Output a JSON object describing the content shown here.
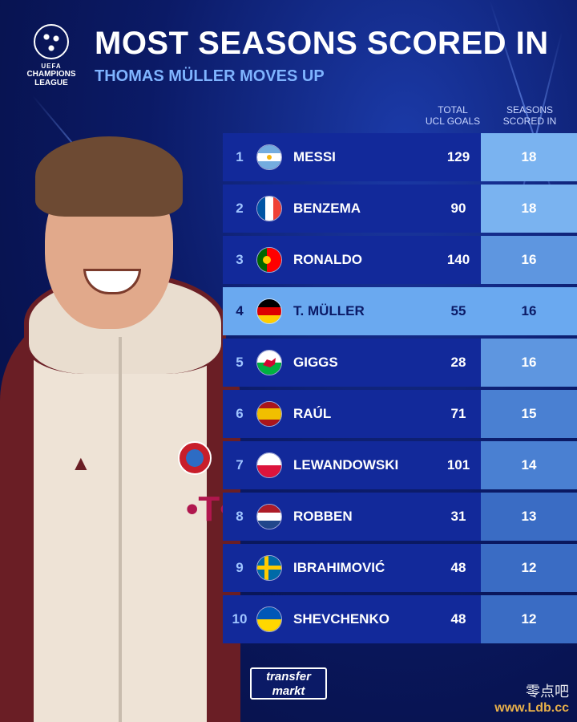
{
  "logo": {
    "line1": "UEFA",
    "line2": "CHAMPIONS",
    "line3": "LEAGUE"
  },
  "title": "MOST SEASONS SCORED IN",
  "subtitle": "THOMAS MÜLLER MOVES UP",
  "columns": {
    "goals_l1": "TOTAL",
    "goals_l2": "UCL GOALS",
    "seasons_l1": "SEASONS",
    "seasons_l2": "SCORED IN"
  },
  "rows": [
    {
      "rank": "1",
      "name": "MESSI",
      "goals": "129",
      "seasons": "18",
      "flag": "argentina"
    },
    {
      "rank": "2",
      "name": "BENZEMA",
      "goals": "90",
      "seasons": "18",
      "flag": "france"
    },
    {
      "rank": "3",
      "name": "RONALDO",
      "goals": "140",
      "seasons": "16",
      "flag": "portugal"
    },
    {
      "rank": "4",
      "name": "T. MÜLLER",
      "goals": "55",
      "seasons": "16",
      "flag": "germany"
    },
    {
      "rank": "5",
      "name": "GIGGS",
      "goals": "28",
      "seasons": "16",
      "flag": "wales"
    },
    {
      "rank": "6",
      "name": "RAÚL",
      "goals": "71",
      "seasons": "15",
      "flag": "spain"
    },
    {
      "rank": "7",
      "name": "LEWANDOWSKI",
      "goals": "101",
      "seasons": "14",
      "flag": "poland"
    },
    {
      "rank": "8",
      "name": "ROBBEN",
      "goals": "31",
      "seasons": "13",
      "flag": "netherlands"
    },
    {
      "rank": "9",
      "name": "IBRAHIMOVIĆ",
      "goals": "48",
      "seasons": "12",
      "flag": "sweden"
    },
    {
      "rank": "10",
      "name": "SHEVCHENKO",
      "goals": "48",
      "seasons": "12",
      "flag": "ukraine"
    }
  ],
  "highlight_rank": "4",
  "brand": {
    "line1": "transfer",
    "line2": "markt"
  },
  "watermark": {
    "chinese": "零点吧",
    "url": "www.Ldb.cc"
  },
  "colors": {
    "accent": "#7fb4ff",
    "highlight": "#6aa9f0",
    "row": "#12299a"
  }
}
